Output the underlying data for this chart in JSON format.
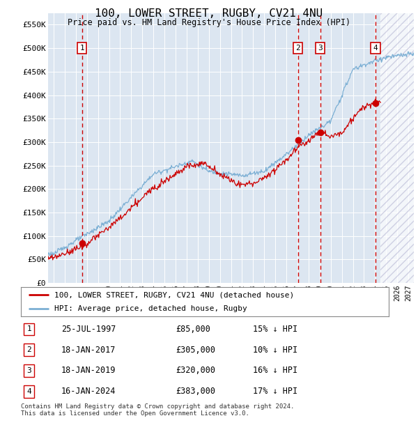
{
  "title": "100, LOWER STREET, RUGBY, CV21 4NU",
  "subtitle": "Price paid vs. HM Land Registry's House Price Index (HPI)",
  "background_color": "#dce6f1",
  "ylim": [
    0,
    575000
  ],
  "xlim_start": 1994.5,
  "xlim_end": 2027.5,
  "ytick_labels": [
    "£0",
    "£50K",
    "£100K",
    "£150K",
    "£200K",
    "£250K",
    "£300K",
    "£350K",
    "£400K",
    "£450K",
    "£500K",
    "£550K"
  ],
  "ytick_values": [
    0,
    50000,
    100000,
    150000,
    200000,
    250000,
    300000,
    350000,
    400000,
    450000,
    500000,
    550000
  ],
  "transactions": [
    {
      "num": 1,
      "date": "25-JUL-1997",
      "price": 85000,
      "year": 1997.56,
      "pct": "15%",
      "dir": "↓"
    },
    {
      "num": 2,
      "date": "18-JAN-2017",
      "price": 305000,
      "year": 2017.05,
      "pct": "10%",
      "dir": "↓"
    },
    {
      "num": 3,
      "date": "18-JAN-2019",
      "price": 320000,
      "year": 2019.05,
      "pct": "16%",
      "dir": "↓"
    },
    {
      "num": 4,
      "date": "16-JAN-2024",
      "price": 383000,
      "year": 2024.05,
      "pct": "17%",
      "dir": "↓"
    }
  ],
  "red_line_color": "#cc0000",
  "blue_line_color": "#7bafd4",
  "vline_color": "#cc0000",
  "marker_color": "#cc0000",
  "legend_label_red": "100, LOWER STREET, RUGBY, CV21 4NU (detached house)",
  "legend_label_blue": "HPI: Average price, detached house, Rugby",
  "footer": "Contains HM Land Registry data © Crown copyright and database right 2024.\nThis data is licensed under the Open Government Licence v3.0.",
  "future_start": 2024.5
}
